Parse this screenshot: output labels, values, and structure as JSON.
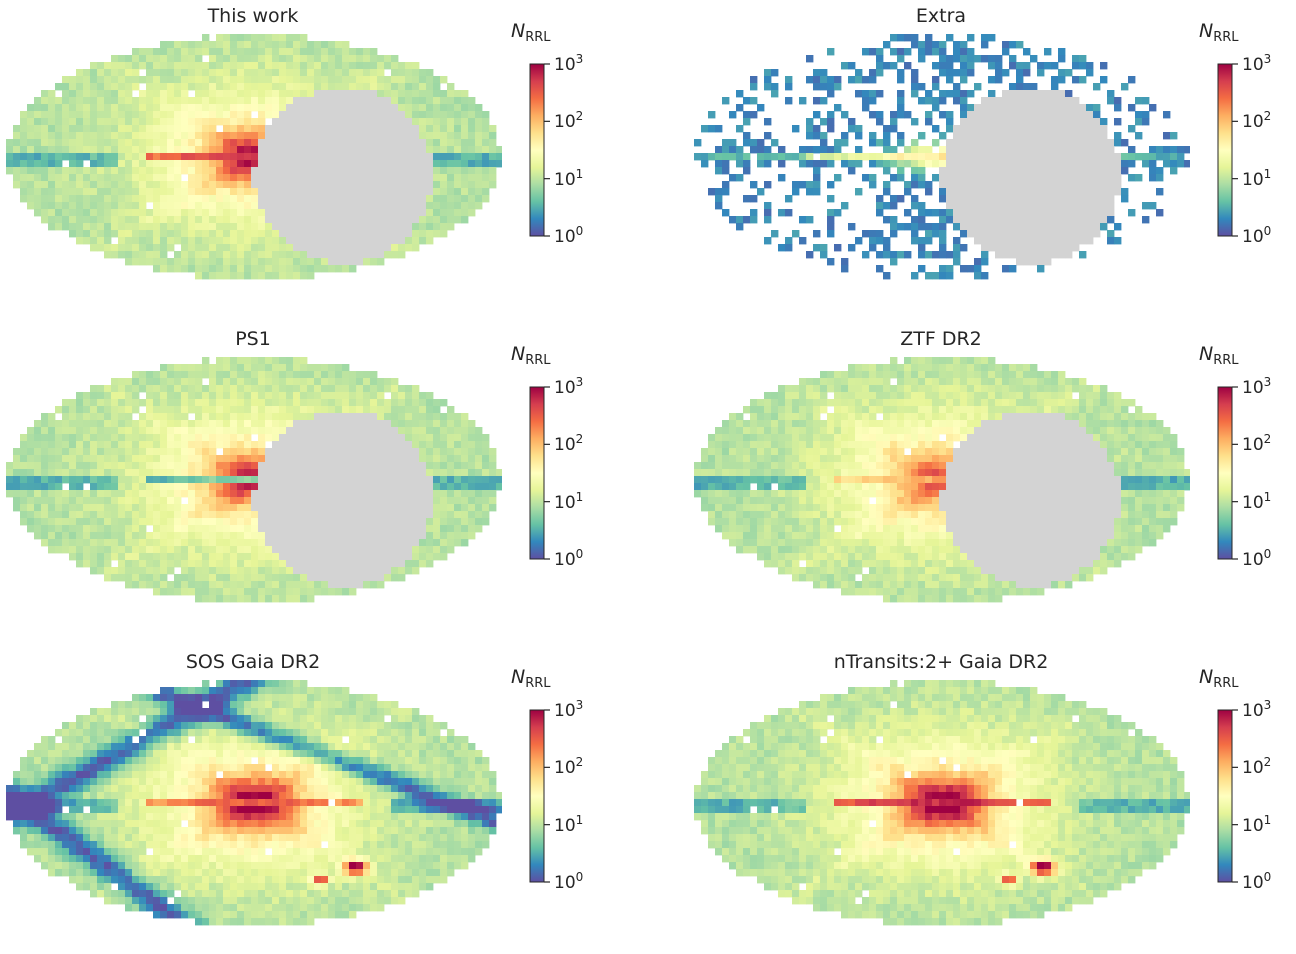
{
  "colorbar": {
    "label_symbol": "N",
    "label_subscript": "RRL",
    "ticks": [
      {
        "base": "10",
        "exp": "0",
        "value": 1
      },
      {
        "base": "10",
        "exp": "1",
        "value": 10
      },
      {
        "base": "10",
        "exp": "2",
        "value": 100
      },
      {
        "base": "10",
        "exp": "3",
        "value": 1000
      }
    ],
    "scale": "log",
    "range": [
      1,
      1000
    ],
    "colormap": "Spectral_r",
    "colors": [
      "#5e4fa2",
      "#3288bd",
      "#66c2a5",
      "#abdda4",
      "#e6f598",
      "#ffffbf",
      "#fee08b",
      "#fdae61",
      "#f46d43",
      "#d53e4f",
      "#9e0142"
    ]
  },
  "masked_color": "#d3d3d3",
  "chart_data": [
    {
      "type": "heatmap",
      "projection": "mollweide",
      "title": "This work",
      "masked_region": true,
      "coverage": "full",
      "peak_log": 2.8,
      "plane_log": 2.2,
      "plane_stripe": true,
      "lmc_smc": false,
      "low_density_streaks": false
    },
    {
      "type": "heatmap",
      "projection": "mollweide",
      "title": "Extra",
      "masked_region": true,
      "coverage": "sparse",
      "peak_log": 2.1,
      "plane_log": 1.2,
      "plane_stripe": true,
      "lmc_smc": false,
      "low_density_streaks": false
    },
    {
      "type": "heatmap",
      "projection": "mollweide",
      "title": "PS1",
      "masked_region": true,
      "coverage": "full",
      "peak_log": 2.7,
      "plane_log": 0.3,
      "plane_stripe": true,
      "lmc_smc": false,
      "low_density_streaks": false
    },
    {
      "type": "heatmap",
      "projection": "mollweide",
      "title": "ZTF DR2",
      "masked_region": true,
      "coverage": "full",
      "peak_log": 2.4,
      "plane_log": 1.6,
      "plane_stripe": true,
      "lmc_smc": false,
      "low_density_streaks": false
    },
    {
      "type": "heatmap",
      "projection": "mollweide",
      "title": "SOS Gaia DR2",
      "masked_region": false,
      "coverage": "full",
      "peak_log": 3.0,
      "plane_log": 2.0,
      "plane_stripe": true,
      "lmc_smc": true,
      "low_density_streaks": true
    },
    {
      "type": "heatmap",
      "projection": "mollweide",
      "title": "nTransits:2+ Gaia DR2",
      "masked_region": false,
      "coverage": "full",
      "peak_log": 3.0,
      "plane_log": 2.3,
      "plane_stripe": true,
      "lmc_smc": true,
      "low_density_streaks": false
    }
  ]
}
